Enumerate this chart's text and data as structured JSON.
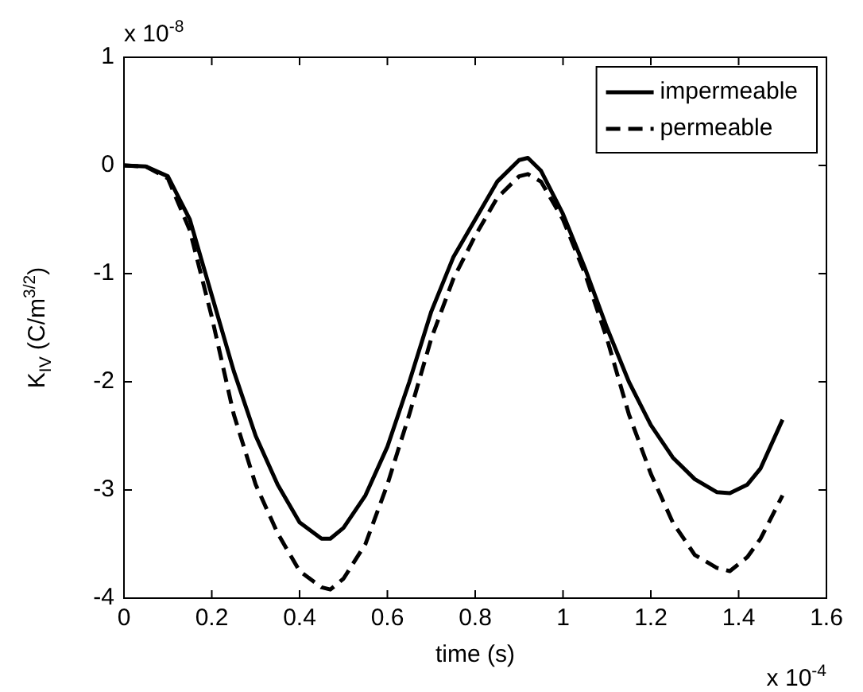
{
  "chart_data": {
    "type": "line",
    "xlabel": "time (s)",
    "ylabel": "K$_{IV}$ (C/m$^{3/2}$)",
    "annotations": [
      "x 10$^{-8}$",
      "x 10$^{-4}$"
    ],
    "x": [
      0,
      0.05,
      0.1,
      0.15,
      0.2,
      0.25,
      0.3,
      0.35,
      0.4,
      0.45,
      0.47,
      0.5,
      0.55,
      0.6,
      0.65,
      0.7,
      0.75,
      0.8,
      0.85,
      0.9,
      0.92,
      0.95,
      1.0,
      1.05,
      1.1,
      1.15,
      1.2,
      1.25,
      1.3,
      1.35,
      1.38,
      1.42,
      1.45,
      1.5
    ],
    "series": [
      {
        "name": "impermeable",
        "color": "#000000",
        "line_style": "solid",
        "values": [
          0,
          -0.01,
          -0.1,
          -0.5,
          -1.2,
          -1.9,
          -2.5,
          -2.95,
          -3.3,
          -3.45,
          -3.45,
          -3.35,
          -3.05,
          -2.6,
          -2.0,
          -1.35,
          -0.85,
          -0.5,
          -0.15,
          0.05,
          0.07,
          -0.05,
          -0.45,
          -0.95,
          -1.5,
          -2.0,
          -2.4,
          -2.7,
          -2.9,
          -3.02,
          -3.03,
          -2.95,
          -2.8,
          -2.35
        ]
      },
      {
        "name": "permeable",
        "color": "#000000",
        "line_style": "dashed",
        "values": [
          0,
          -0.01,
          -0.12,
          -0.6,
          -1.4,
          -2.3,
          -2.95,
          -3.4,
          -3.75,
          -3.9,
          -3.92,
          -3.82,
          -3.5,
          -2.95,
          -2.3,
          -1.6,
          -1.05,
          -0.65,
          -0.3,
          -0.1,
          -0.08,
          -0.15,
          -0.5,
          -1.0,
          -1.6,
          -2.3,
          -2.85,
          -3.3,
          -3.6,
          -3.72,
          -3.75,
          -3.62,
          -3.45,
          -3.05
        ]
      }
    ],
    "xlim": [
      0,
      1.6
    ],
    "xticks": [
      0,
      0.2,
      0.4,
      0.6,
      0.8,
      1,
      1.2,
      1.4,
      1.6
    ],
    "ylim": [
      -4,
      1
    ],
    "yticks": [
      -4,
      -3,
      -2,
      -1,
      0,
      1
    ],
    "grid": false,
    "legend": "top right",
    "marker": "none"
  }
}
